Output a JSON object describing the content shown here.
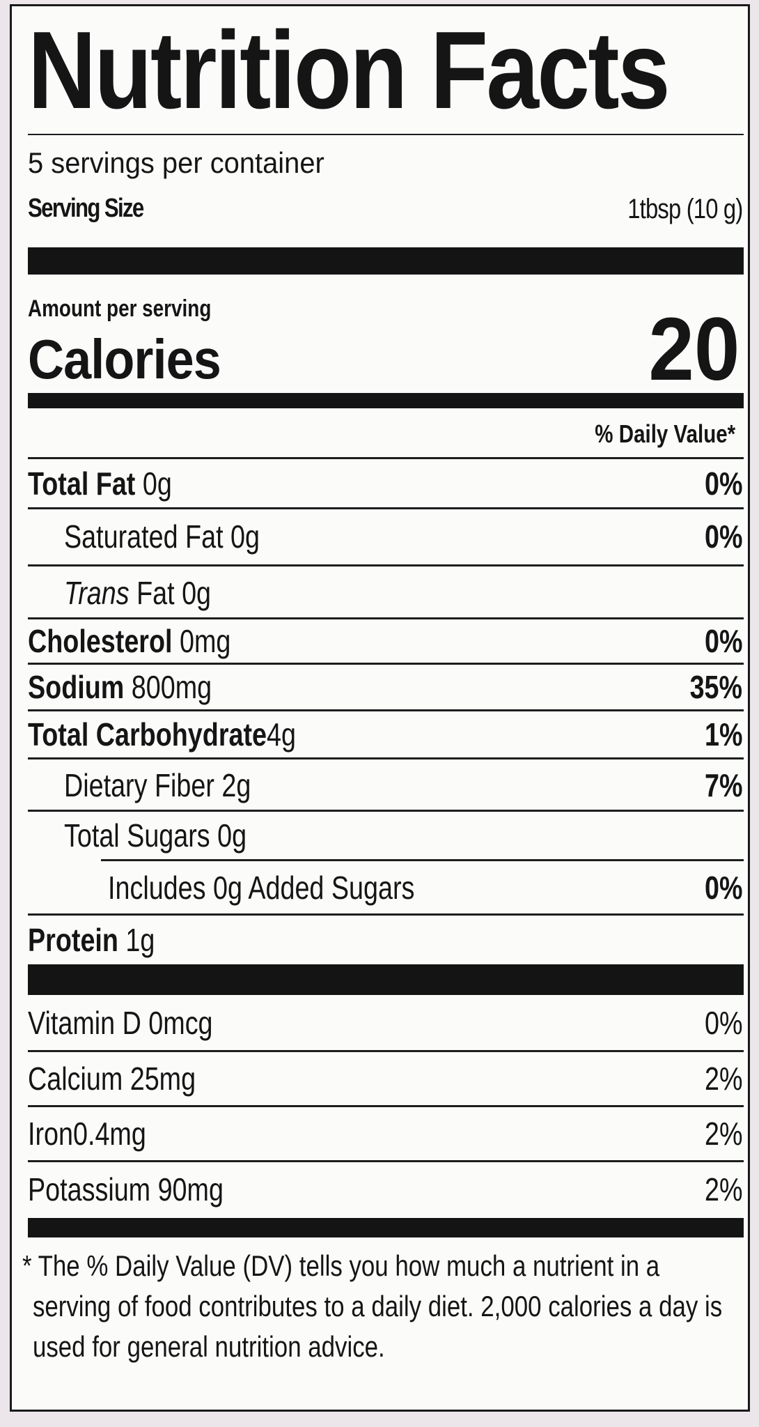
{
  "title": "Nutrition Facts",
  "servings_per_container": "5 servings per container",
  "serving_size": {
    "label": "Serving Size",
    "value": "1tbsp  (10 g)"
  },
  "amount_per_serving": "Amount per serving",
  "calories": {
    "label": "Calories",
    "value": "20"
  },
  "daily_value_header": "% Daily Value*",
  "nutrients": [
    {
      "name": "Total Fat",
      "amount": "0g",
      "dv": "0%"
    },
    {
      "name": "Saturated Fat",
      "amount": "0g",
      "dv": "0%"
    },
    {
      "name": "Trans",
      "amount": "Fat 0g",
      "dv": ""
    },
    {
      "name": "Cholesterol",
      "amount": "0mg",
      "dv": "0%"
    },
    {
      "name": "Sodium",
      "amount": "800mg",
      "dv": "35%"
    },
    {
      "name": "Total Carbohydrate",
      "amount": "4g",
      "dv": "1%"
    },
    {
      "name": "Dietary Fiber",
      "amount": "2g",
      "dv": "7%"
    },
    {
      "name": "Total Sugars",
      "amount": "0g",
      "dv": ""
    },
    {
      "name": "Includes 0g Added Sugars",
      "amount": "",
      "dv": "0%"
    },
    {
      "name": "Protein",
      "amount": "1g",
      "dv": ""
    }
  ],
  "vitamins": [
    {
      "label": "Vitamin D 0mcg",
      "dv": "0%"
    },
    {
      "label": "Calcium 25mg",
      "dv": "2%"
    },
    {
      "label": "Iron0.4mg",
      "dv": "2%"
    },
    {
      "label": "Potassium 90mg",
      "dv": "2%"
    }
  ],
  "footnote": "* The % Daily Value (DV) tells you how much a nutrient in a serving of food contributes to a daily diet. 2,000 calories a day is used for general nutrition advice."
}
